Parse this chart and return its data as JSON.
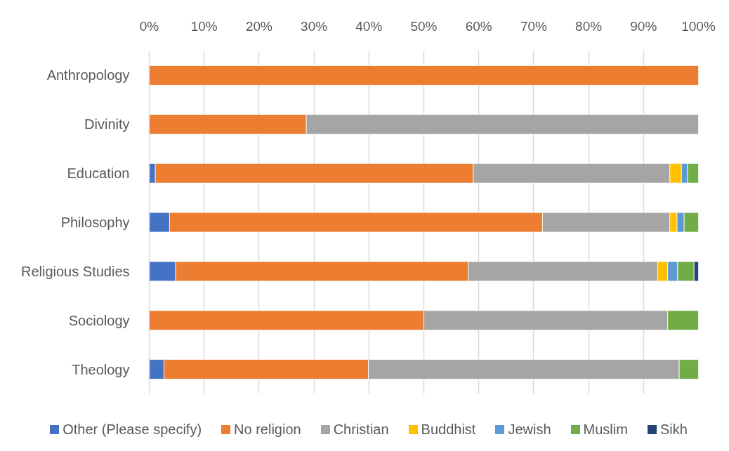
{
  "chart_data": {
    "type": "bar",
    "orientation": "horizontal",
    "stacked": true,
    "categories": [
      "Anthropology",
      "Divinity",
      "Education",
      "Philosophy",
      "Religious Studies",
      "Sociology",
      "Theology"
    ],
    "series": [
      {
        "name": "Other (Please specify)",
        "color": "#4472c4",
        "values": [
          null,
          null,
          1.1,
          3.7,
          4.8,
          null,
          2.7
        ]
      },
      {
        "name": "No religion",
        "color": "#ed7d31",
        "values": [
          100,
          28.6,
          57.9,
          67.9,
          53.3,
          50,
          37.2
        ]
      },
      {
        "name": "Christian",
        "color": "#a5a5a5",
        "values": [
          null,
          71.4,
          35.8,
          23.2,
          34.5,
          44.4,
          56.6
        ]
      },
      {
        "name": "Buddhist",
        "color": "#ffc000",
        "values": [
          null,
          null,
          2.1,
          1.3,
          1.8,
          null,
          null
        ]
      },
      {
        "name": "Jewish",
        "color": "#5b9bd5",
        "values": [
          null,
          null,
          1.1,
          1.3,
          1.8,
          null,
          null
        ]
      },
      {
        "name": "Muslim",
        "color": "#70ad47",
        "values": [
          null,
          null,
          2.0,
          2.6,
          3.0,
          5.6,
          3.5
        ]
      },
      {
        "name": "Sikh",
        "color": "#264478",
        "values": [
          null,
          null,
          null,
          null,
          0.8,
          null,
          null
        ]
      }
    ],
    "xlim": [
      0,
      100
    ],
    "xticks": [
      {
        "value": 0,
        "label": "0%"
      },
      {
        "value": 10,
        "label": "10%"
      },
      {
        "value": 20,
        "label": "20%"
      },
      {
        "value": 30,
        "label": "30%"
      },
      {
        "value": 40,
        "label": "40%"
      },
      {
        "value": 50,
        "label": "50%"
      },
      {
        "value": 60,
        "label": "60%"
      },
      {
        "value": 70,
        "label": "70%"
      },
      {
        "value": 80,
        "label": "80%"
      },
      {
        "value": 90,
        "label": "90%"
      },
      {
        "value": 100,
        "label": "100%"
      }
    ],
    "grid": "x",
    "legend": "bottom"
  }
}
